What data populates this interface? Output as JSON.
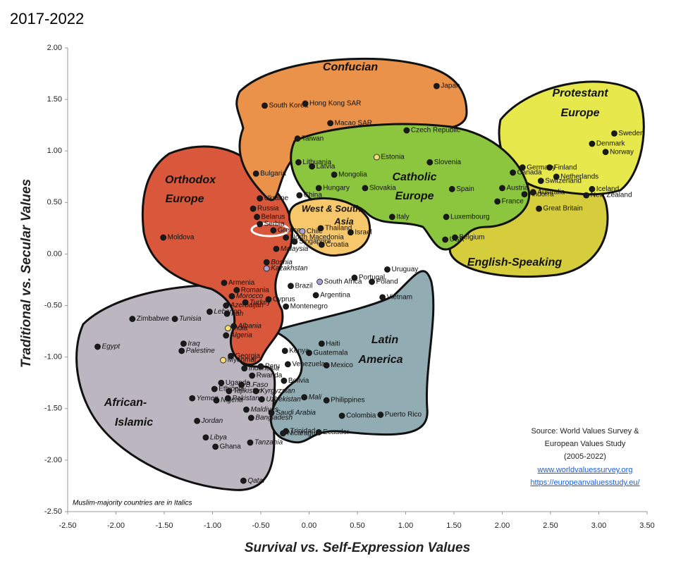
{
  "chart_data": {
    "type": "scatter",
    "title": "2017-2022",
    "xlabel": "Survival vs. Self-Expression Values",
    "ylabel": "Traditional vs. Secular Values",
    "xlim": [
      -2.5,
      3.5
    ],
    "ylim": [
      -2.5,
      2.0
    ],
    "xticks": [
      {
        "value": -2.5,
        "label": "-2.50"
      },
      {
        "value": -2,
        "label": "-2.00"
      },
      {
        "value": -1.5,
        "label": "-1.50"
      },
      {
        "value": -1,
        "label": "-1.00"
      },
      {
        "value": -0.5,
        "label": "-0.50"
      },
      {
        "value": 0,
        "label": "0.00"
      },
      {
        "value": 0.5,
        "label": "0.50"
      },
      {
        "value": 1,
        "label": "1.00"
      },
      {
        "value": 1.5,
        "label": "1.50"
      },
      {
        "value": 2,
        "label": "2.00"
      },
      {
        "value": 2.5,
        "label": "2.50"
      },
      {
        "value": 3,
        "label": "3.00"
      },
      {
        "value": 3.5,
        "label": "3.50"
      }
    ],
    "yticks": [
      {
        "value": 2,
        "label": "2.00"
      },
      {
        "value": 1.5,
        "label": "1.50"
      },
      {
        "value": 1,
        "label": "1.00"
      },
      {
        "value": 0.5,
        "label": "0.50"
      },
      {
        "value": 0,
        "label": "0.00"
      },
      {
        "value": -0.5,
        "label": "-0.50"
      },
      {
        "value": -1,
        "label": "-1.00"
      },
      {
        "value": -1.5,
        "label": "-1.50"
      },
      {
        "value": -2,
        "label": "-2.00"
      },
      {
        "value": -2.5,
        "label": "-2.50"
      }
    ],
    "regions": [
      {
        "name": [
          "Confucian"
        ]
      },
      {
        "name": [
          "Catholic",
          "Europe"
        ]
      },
      {
        "name": [
          "Protestant",
          "Europe"
        ]
      },
      {
        "name": [
          "English-Speaking"
        ]
      },
      {
        "name": [
          "Orthodox",
          "Europe"
        ]
      },
      {
        "name": [
          "West & South",
          "Asia"
        ]
      },
      {
        "name": [
          "Latin",
          "America"
        ]
      },
      {
        "name": [
          "African-",
          "Islamic"
        ]
      }
    ],
    "note": "Muslim-majority countries are in Italics",
    "source": [
      "Source: World Values Survey &",
      "European Values Study",
      "(2005-2022)"
    ],
    "links": [
      "www.worldvaluessurvey.org",
      "https://europeanvaluesstudy.eu/"
    ],
    "points": [
      {
        "name": "Japan",
        "x": 1.32,
        "y": 1.63,
        "italic": false,
        "color": "#1a1a1a"
      },
      {
        "name": "South Korea",
        "x": -0.46,
        "y": 1.44,
        "italic": false,
        "color": "#1a1a1a"
      },
      {
        "name": "Hong Kong SAR",
        "x": -0.04,
        "y": 1.46,
        "italic": false,
        "color": "#1a1a1a"
      },
      {
        "name": "Macao SAR",
        "x": 0.22,
        "y": 1.27,
        "italic": false,
        "color": "#1a1a1a"
      },
      {
        "name": "Taiwan",
        "x": -0.12,
        "y": 1.12,
        "italic": false,
        "color": "#1a1a1a"
      },
      {
        "name": "China",
        "x": -0.1,
        "y": 0.57,
        "italic": false,
        "color": "#1a1a1a"
      },
      {
        "name": "Czech Republic",
        "x": 1.01,
        "y": 1.2,
        "italic": false,
        "color": "#1a1a1a"
      },
      {
        "name": "Estonia",
        "x": 0.7,
        "y": 0.94,
        "italic": false,
        "color": "#f7dd72"
      },
      {
        "name": "Lithuania",
        "x": -0.11,
        "y": 0.89,
        "italic": false,
        "color": "#1a1a1a"
      },
      {
        "name": "Latvia",
        "x": 0.03,
        "y": 0.85,
        "italic": false,
        "color": "#1a1a1a"
      },
      {
        "name": "Mongolia",
        "x": 0.26,
        "y": 0.77,
        "italic": false,
        "color": "#1a1a1a"
      },
      {
        "name": "Hungary",
        "x": 0.1,
        "y": 0.64,
        "italic": false,
        "color": "#1a1a1a"
      },
      {
        "name": "Slovakia",
        "x": 0.58,
        "y": 0.64,
        "italic": false,
        "color": "#1a1a1a"
      },
      {
        "name": "Slovenia",
        "x": 1.25,
        "y": 0.89,
        "italic": false,
        "color": "#1a1a1a"
      },
      {
        "name": "Spain",
        "x": 1.48,
        "y": 0.63,
        "italic": false,
        "color": "#1a1a1a"
      },
      {
        "name": "Italy",
        "x": 0.86,
        "y": 0.36,
        "italic": false,
        "color": "#1a1a1a"
      },
      {
        "name": "Luxembourg",
        "x": 1.42,
        "y": 0.36,
        "italic": false,
        "color": "#1a1a1a"
      },
      {
        "name": "Belgium",
        "x": 1.51,
        "y": 0.16,
        "italic": false,
        "color": "#1a1a1a"
      },
      {
        "name": "France",
        "x": 1.95,
        "y": 0.51,
        "italic": false,
        "color": "#1a1a1a"
      },
      {
        "name": "Austria",
        "x": 2.0,
        "y": 0.64,
        "italic": false,
        "color": "#1a1a1a"
      },
      {
        "name": "Canada",
        "x": 2.11,
        "y": 0.79,
        "italic": false,
        "color": "#1a1a1a"
      },
      {
        "name": "Andorra",
        "x": 2.23,
        "y": 0.58,
        "italic": false,
        "color": "#1a1a1a"
      },
      {
        "name": "Australia",
        "x": 2.32,
        "y": 0.6,
        "italic": false,
        "color": "#1a1a1a"
      },
      {
        "name": "USA",
        "x": 1.41,
        "y": 0.14,
        "italic": false,
        "color": "#1a1a1a"
      },
      {
        "name": "Germany",
        "x": 2.21,
        "y": 0.84,
        "italic": false,
        "color": "#1a1a1a"
      },
      {
        "name": "Finland",
        "x": 2.49,
        "y": 0.84,
        "italic": false,
        "color": "#1a1a1a"
      },
      {
        "name": "Denmark",
        "x": 2.93,
        "y": 1.07,
        "italic": false,
        "color": "#1a1a1a"
      },
      {
        "name": "Sweden",
        "x": 3.16,
        "y": 1.17,
        "italic": false,
        "color": "#1a1a1a"
      },
      {
        "name": "Norway",
        "x": 3.07,
        "y": 0.99,
        "italic": false,
        "color": "#1a1a1a"
      },
      {
        "name": "Netherlands",
        "x": 2.56,
        "y": 0.75,
        "italic": false,
        "color": "#1a1a1a"
      },
      {
        "name": "Switzerland",
        "x": 2.4,
        "y": 0.71,
        "italic": false,
        "color": "#1a1a1a"
      },
      {
        "name": "Iceland",
        "x": 2.93,
        "y": 0.63,
        "italic": false,
        "color": "#1a1a1a"
      },
      {
        "name": "New Zealand",
        "x": 2.87,
        "y": 0.57,
        "italic": false,
        "color": "#1a1a1a"
      },
      {
        "name": "Great Britain",
        "x": 2.38,
        "y": 0.44,
        "italic": false,
        "color": "#1a1a1a"
      },
      {
        "name": "Bulgaria",
        "x": -0.55,
        "y": 0.78,
        "italic": false,
        "color": "#1a1a1a"
      },
      {
        "name": "Ukraine",
        "x": -0.51,
        "y": 0.54,
        "italic": false,
        "color": "#1a1a1a"
      },
      {
        "name": "Russia",
        "x": -0.58,
        "y": 0.44,
        "italic": false,
        "color": "#1a1a1a"
      },
      {
        "name": "Belarus",
        "x": -0.54,
        "y": 0.36,
        "italic": false,
        "color": "#1a1a1a"
      },
      {
        "name": "Serbia",
        "x": -0.51,
        "y": 0.29,
        "italic": false,
        "color": "#1a1a1a"
      },
      {
        "name": "Greece",
        "x": -0.37,
        "y": 0.23,
        "italic": false,
        "color": "#1a1a1a"
      },
      {
        "name": "North Macedonia",
        "x": -0.24,
        "y": 0.16,
        "italic": false,
        "color": "#1a1a1a"
      },
      {
        "name": "Moldova",
        "x": -1.51,
        "y": 0.16,
        "italic": false,
        "color": "#1a1a1a"
      },
      {
        "name": "Bosnia",
        "x": -0.44,
        "y": -0.08,
        "italic": true,
        "color": "#1a1a1a"
      },
      {
        "name": "Kazakhstan",
        "x": -0.44,
        "y": -0.14,
        "italic": true,
        "color": "#a9a3d6"
      },
      {
        "name": "Armenia",
        "x": -0.88,
        "y": -0.28,
        "italic": false,
        "color": "#1a1a1a"
      },
      {
        "name": "Romania",
        "x": -0.75,
        "y": -0.35,
        "italic": false,
        "color": "#1a1a1a"
      },
      {
        "name": "Chile",
        "x": -0.07,
        "y": 0.22,
        "italic": false,
        "color": "#a9a3d6"
      },
      {
        "name": "Thailand",
        "x": 0.12,
        "y": 0.25,
        "italic": false,
        "color": "#1a1a1a"
      },
      {
        "name": "Singapore",
        "x": -0.15,
        "y": 0.12,
        "italic": false,
        "color": "#1a1a1a"
      },
      {
        "name": "Malaysia",
        "x": -0.34,
        "y": 0.05,
        "italic": true,
        "color": "#1a1a1a"
      },
      {
        "name": "Croatia",
        "x": 0.13,
        "y": 0.09,
        "italic": false,
        "color": "#1a1a1a"
      },
      {
        "name": "Israel",
        "x": 0.43,
        "y": 0.21,
        "italic": false,
        "color": "#1a1a1a"
      },
      {
        "name": "South Africa",
        "x": 0.11,
        "y": -0.27,
        "italic": false,
        "color": "#a9a3d6"
      },
      {
        "name": "Brazil",
        "x": -0.19,
        "y": -0.31,
        "italic": false,
        "color": "#1a1a1a"
      },
      {
        "name": "Portugal",
        "x": 0.47,
        "y": -0.23,
        "italic": false,
        "color": "#1a1a1a"
      },
      {
        "name": "Poland",
        "x": 0.65,
        "y": -0.27,
        "italic": false,
        "color": "#1a1a1a"
      },
      {
        "name": "Uruguay",
        "x": 0.81,
        "y": -0.15,
        "italic": false,
        "color": "#1a1a1a"
      },
      {
        "name": "Vietnam",
        "x": 0.76,
        "y": -0.42,
        "italic": false,
        "color": "#1a1a1a"
      },
      {
        "name": "Argentina",
        "x": 0.07,
        "y": -0.4,
        "italic": false,
        "color": "#1a1a1a"
      },
      {
        "name": "Cyprus",
        "x": -0.42,
        "y": -0.44,
        "italic": false,
        "color": "#1a1a1a"
      },
      {
        "name": "Montenegro",
        "x": -0.24,
        "y": -0.51,
        "italic": false,
        "color": "#1a1a1a"
      },
      {
        "name": "Turkey",
        "x": -0.66,
        "y": -0.47,
        "italic": true,
        "color": "#1a1a1a"
      },
      {
        "name": "Morocco",
        "x": -0.8,
        "y": -0.41,
        "italic": true,
        "color": "#1a1a1a"
      },
      {
        "name": "Azerbaijan",
        "x": -0.86,
        "y": -0.5,
        "italic": true,
        "color": "#1a1a1a"
      },
      {
        "name": "Iran",
        "x": -0.85,
        "y": -0.58,
        "italic": true,
        "color": "#1a1a1a"
      },
      {
        "name": "Lebanon",
        "x": -1.03,
        "y": -0.56,
        "italic": true,
        "color": "#1a1a1a"
      },
      {
        "name": "Tunisia",
        "x": -1.39,
        "y": -0.63,
        "italic": true,
        "color": "#1a1a1a"
      },
      {
        "name": "Zimbabwe",
        "x": -1.83,
        "y": -0.63,
        "italic": false,
        "color": "#1a1a1a"
      },
      {
        "name": "India",
        "x": -0.84,
        "y": -0.72,
        "italic": false,
        "color": "#f7dd72"
      },
      {
        "name": "Albania",
        "x": -0.78,
        "y": -0.7,
        "italic": true,
        "color": "#1a1a1a"
      },
      {
        "name": "Algeria",
        "x": -0.86,
        "y": -0.79,
        "italic": true,
        "color": "#1a1a1a"
      },
      {
        "name": "Iraq",
        "x": -1.3,
        "y": -0.87,
        "italic": true,
        "color": "#1a1a1a"
      },
      {
        "name": "Palestine",
        "x": -1.32,
        "y": -0.94,
        "italic": true,
        "color": "#1a1a1a"
      },
      {
        "name": "Egypt",
        "x": -2.19,
        "y": -0.9,
        "italic": true,
        "color": "#1a1a1a"
      },
      {
        "name": "Georgia",
        "x": -0.81,
        "y": -0.99,
        "italic": false,
        "color": "#1a1a1a"
      },
      {
        "name": "Myanmar",
        "x": -0.89,
        "y": -1.03,
        "italic": false,
        "color": "#f7dd72"
      },
      {
        "name": "Indonesia",
        "x": -0.67,
        "y": -1.11,
        "italic": true,
        "color": "#1a1a1a"
      },
      {
        "name": "Kenya",
        "x": -0.25,
        "y": -0.94,
        "italic": false,
        "color": "#1a1a1a"
      },
      {
        "name": "Haiti",
        "x": 0.13,
        "y": -0.87,
        "italic": false,
        "color": "#1a1a1a"
      },
      {
        "name": "Guatemala",
        "x": 0.0,
        "y": -0.96,
        "italic": false,
        "color": "#1a1a1a"
      },
      {
        "name": "Venezuela",
        "x": -0.22,
        "y": -1.07,
        "italic": false,
        "color": "#1a1a1a"
      },
      {
        "name": "Mexico",
        "x": 0.18,
        "y": -1.08,
        "italic": false,
        "color": "#1a1a1a"
      },
      {
        "name": "Peru",
        "x": -0.5,
        "y": -1.09,
        "italic": false,
        "color": "#1a1a1a"
      },
      {
        "name": "Bolivia",
        "x": -0.26,
        "y": -1.23,
        "italic": false,
        "color": "#1a1a1a"
      },
      {
        "name": "Rwanda",
        "x": -0.59,
        "y": -1.18,
        "italic": false,
        "color": "#1a1a1a"
      },
      {
        "name": "Uganda",
        "x": -0.91,
        "y": -1.25,
        "italic": false,
        "color": "#1a1a1a"
      },
      {
        "name": "B.Faso",
        "x": -0.7,
        "y": -1.27,
        "italic": true,
        "color": "#1a1a1a"
      },
      {
        "name": "Ethiopia",
        "x": -0.98,
        "y": -1.31,
        "italic": false,
        "color": "#1a1a1a"
      },
      {
        "name": "Tajikistan",
        "x": -0.83,
        "y": -1.33,
        "italic": true,
        "color": "#1a1a1a"
      },
      {
        "name": "Kyrgyzstan",
        "x": -0.55,
        "y": -1.33,
        "italic": true,
        "color": "#1a1a1a"
      },
      {
        "name": "Uzbekistan",
        "x": -0.49,
        "y": -1.41,
        "italic": true,
        "color": "#1a1a1a"
      },
      {
        "name": "Nigeria",
        "x": -0.96,
        "y": -1.42,
        "italic": true,
        "color": "#1a1a1a"
      },
      {
        "name": "Pakistan",
        "x": -0.84,
        "y": -1.4,
        "italic": true,
        "color": "#1a1a1a"
      },
      {
        "name": "Yemen",
        "x": -1.21,
        "y": -1.4,
        "italic": true,
        "color": "#1a1a1a"
      },
      {
        "name": "Mali",
        "x": -0.05,
        "y": -1.39,
        "italic": true,
        "color": "#1a1a1a"
      },
      {
        "name": "Maldives",
        "x": -0.65,
        "y": -1.51,
        "italic": true,
        "color": "#1a1a1a"
      },
      {
        "name": "Saudi Arabia",
        "x": -0.39,
        "y": -1.54,
        "italic": true,
        "color": "#1a1a1a"
      },
      {
        "name": "Philippines",
        "x": 0.18,
        "y": -1.42,
        "italic": false,
        "color": "#1a1a1a"
      },
      {
        "name": "Puerto Rico",
        "x": 0.74,
        "y": -1.56,
        "italic": false,
        "color": "#1a1a1a"
      },
      {
        "name": "Colombia",
        "x": 0.34,
        "y": -1.57,
        "italic": false,
        "color": "#1a1a1a"
      },
      {
        "name": "Bangladesh",
        "x": -0.6,
        "y": -1.59,
        "italic": true,
        "color": "#1a1a1a"
      },
      {
        "name": "Jordan",
        "x": -1.16,
        "y": -1.62,
        "italic": true,
        "color": "#1a1a1a"
      },
      {
        "name": "Trinidad",
        "x": -0.24,
        "y": -1.72,
        "italic": false,
        "color": "#1a1a1a"
      },
      {
        "name": "Nicaragua",
        "x": -0.27,
        "y": -1.74,
        "italic": false,
        "color": "#1a1a1a"
      },
      {
        "name": "Ecuador",
        "x": 0.1,
        "y": -1.73,
        "italic": false,
        "color": "#1a1a1a"
      },
      {
        "name": "Libya",
        "x": -1.07,
        "y": -1.78,
        "italic": true,
        "color": "#1a1a1a"
      },
      {
        "name": "Ghana",
        "x": -0.97,
        "y": -1.87,
        "italic": false,
        "color": "#1a1a1a"
      },
      {
        "name": "Tanzania",
        "x": -0.61,
        "y": -1.83,
        "italic": true,
        "color": "#1a1a1a"
      },
      {
        "name": "Qatar",
        "x": -0.68,
        "y": -2.2,
        "italic": true,
        "color": "#1a1a1a"
      }
    ]
  }
}
